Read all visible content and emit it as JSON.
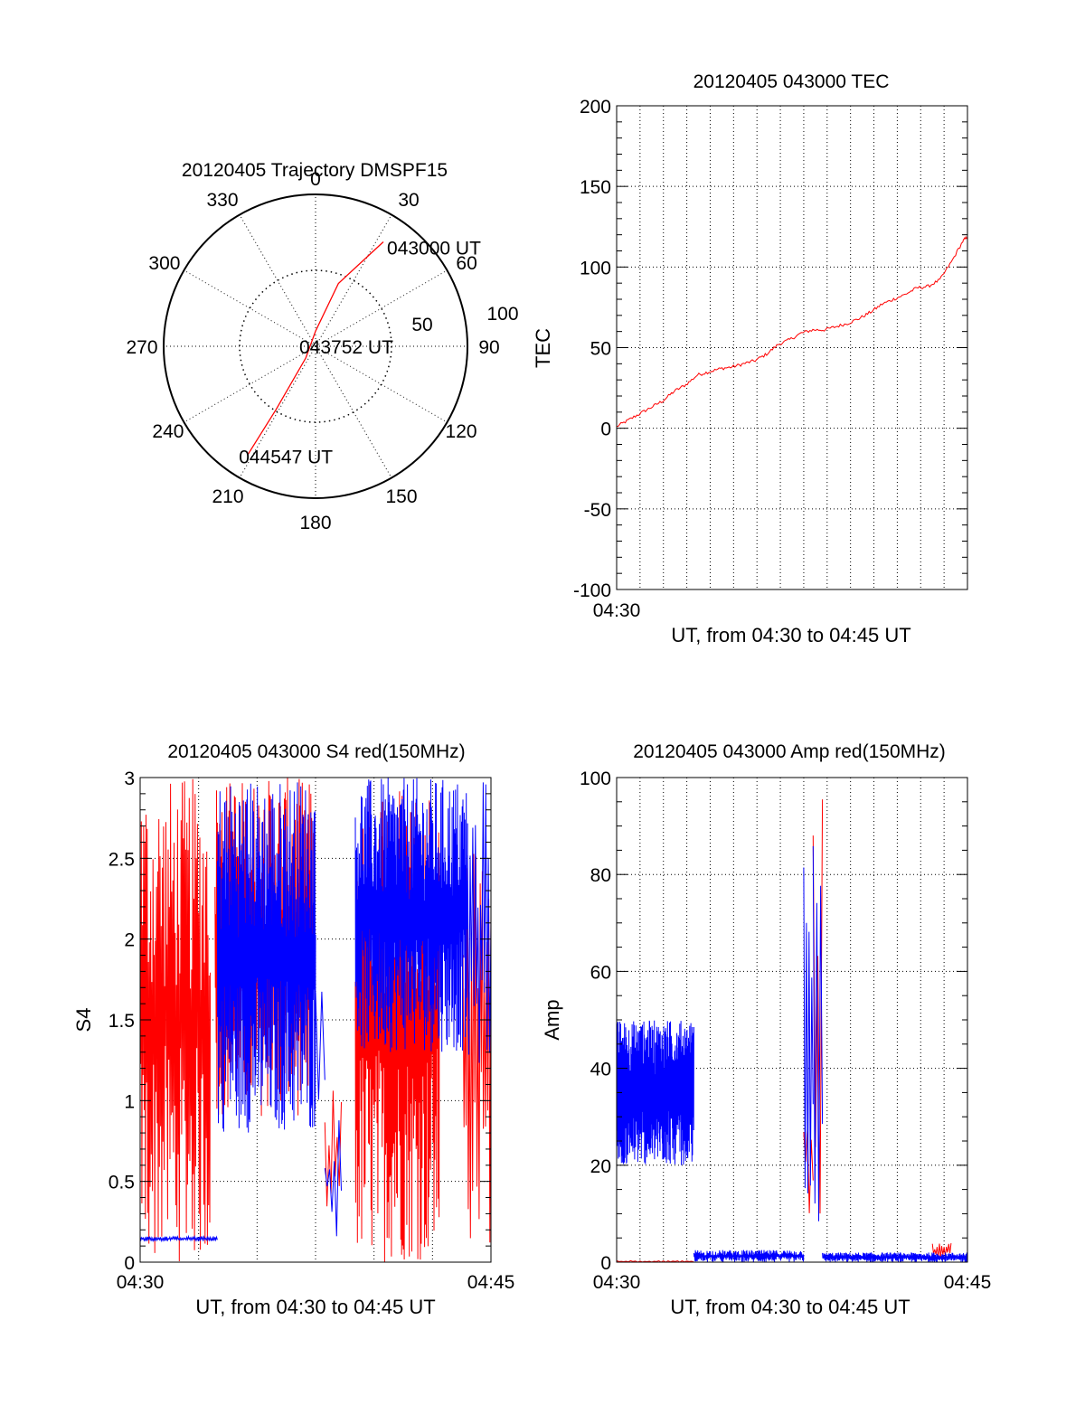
{
  "colors": {
    "red_series": "#ff0000",
    "blue_series": "#0000ff",
    "axes": "#000000"
  },
  "chart_data": [
    {
      "type": "polar",
      "title": "20120405 Trajectory DMSPF15",
      "angle_labels": [
        "0",
        "30",
        "60",
        "90",
        "120",
        "150",
        "180",
        "210",
        "240",
        "270",
        "300",
        "330"
      ],
      "radial_labels": [
        "50",
        "100"
      ],
      "center_label": "0",
      "rmax": 100,
      "grid": true,
      "series": [
        {
          "color": "#ff0000",
          "points": [
            {
              "az": 33,
              "r": 82
            },
            {
              "az": 20,
              "r": 44
            },
            {
              "az": 0,
              "r": 10
            },
            {
              "az": 220,
              "r": 10
            },
            {
              "az": 212,
              "r": 49
            },
            {
              "az": 212,
              "r": 84
            }
          ]
        }
      ],
      "annotations": [
        {
          "text": "043000 UT",
          "az": 33,
          "r": 82
        },
        {
          "text": "043752 UT",
          "az": 0,
          "r": 0
        },
        {
          "text": "044547 UT",
          "az": 212,
          "r": 84
        }
      ]
    },
    {
      "type": "line",
      "title": "20120405 043000 TEC",
      "xlabel": "UT, from 04:30 to 04:45 UT",
      "ylabel": "TEC",
      "x_tick_labels": [
        "04:30"
      ],
      "xlim": [
        0,
        15.2
      ],
      "ylim": [
        -100,
        200
      ],
      "y_ticks": [
        -100,
        -50,
        0,
        50,
        100,
        150,
        200
      ],
      "grid": true,
      "series": [
        {
          "color": "#ff0000",
          "x": [
            0,
            0.5,
            1,
            1.5,
            2,
            2.5,
            3,
            3.5,
            4,
            4.5,
            5,
            5.5,
            6,
            6.5,
            7,
            7.5,
            8,
            8.5,
            9,
            9.5,
            10,
            10.5,
            11,
            11.5,
            12,
            12.5,
            13,
            13.5,
            14,
            14.5,
            15,
            15.2
          ],
          "y": [
            1,
            5,
            9,
            13,
            17,
            23,
            27,
            33,
            35,
            37,
            38,
            40,
            42,
            46,
            52,
            55,
            59,
            61,
            61,
            63,
            65,
            68,
            72,
            77,
            80,
            83,
            87,
            88,
            92,
            103,
            116,
            119
          ]
        }
      ]
    },
    {
      "type": "line",
      "title": "20120405 043000 S4 red(150MHz)",
      "xlabel": "UT, from 04:30 to 04:45 UT",
      "ylabel": "S4",
      "x_tick_labels": [
        "04:30",
        "04:45"
      ],
      "xlim": [
        0,
        15
      ],
      "ylim": [
        0,
        3
      ],
      "y_ticks": [
        0,
        0.5,
        1,
        1.5,
        2,
        2.5,
        3
      ],
      "y_tick_labels": [
        "0",
        "0.5",
        "1",
        "1.5",
        "2",
        "2.5",
        "3"
      ],
      "grid": true,
      "series": [
        {
          "color": "#ff0000",
          "segments": [
            {
              "x0": 0.0,
              "x1": 3.0,
              "low": 0,
              "high": 3,
              "density": 40
            },
            {
              "x0": 3.2,
              "x1": 7.4,
              "low": 0.9,
              "high": 3,
              "density": 60
            },
            {
              "x0": 7.9,
              "x1": 8.6,
              "low": 0.13,
              "high": 1.1,
              "density": 12
            },
            {
              "x0": 9.2,
              "x1": 12.8,
              "low": 0,
              "high": 3,
              "density": 55
            },
            {
              "x0": 13.8,
              "x1": 15.0,
              "low": 0.1,
              "high": 2.6,
              "density": 22
            }
          ]
        },
        {
          "color": "#0000ff",
          "segments": [
            {
              "x0": 0.0,
              "x1": 3.3,
              "low": 0.13,
              "high": 0.16,
              "density": 30
            },
            {
              "x0": 3.3,
              "x1": 7.5,
              "low": 0.8,
              "high": 3,
              "density": 70
            },
            {
              "x0": 7.5,
              "x1": 7.9,
              "low": 1.0,
              "high": 1.8,
              "density": 8
            },
            {
              "x0": 7.9,
              "x1": 8.6,
              "low": 0.15,
              "high": 0.9,
              "density": 10
            },
            {
              "x0": 9.2,
              "x1": 14.0,
              "low": 1.3,
              "high": 3,
              "density": 70
            },
            {
              "x0": 14.0,
              "x1": 15.0,
              "low": 1.0,
              "high": 3,
              "density": 18
            }
          ]
        }
      ]
    },
    {
      "type": "line",
      "title": "20120405 043000 Amp red(150MHz)",
      "xlabel": "UT, from 04:30 to 04:45 UT",
      "ylabel": "Amp",
      "x_tick_labels": [
        "04:30",
        "04:45"
      ],
      "xlim": [
        0,
        15
      ],
      "ylim": [
        0,
        100
      ],
      "y_ticks": [
        0,
        20,
        40,
        60,
        80,
        100
      ],
      "grid": true,
      "series": [
        {
          "color": "#ff0000",
          "segments": [
            {
              "x0": 0.0,
              "x1": 3.3,
              "low": 0,
              "high": 0.3,
              "density": 10
            },
            {
              "x0": 8.0,
              "x1": 8.4,
              "low": 10,
              "high": 35,
              "density": 12
            },
            {
              "x0": 8.4,
              "x1": 8.8,
              "low": 10,
              "high": 99,
              "density": 10
            },
            {
              "x0": 13.5,
              "x1": 14.3,
              "low": 1,
              "high": 4,
              "density": 20
            }
          ]
        },
        {
          "color": "#0000ff",
          "segments": [
            {
              "x0": 0.0,
              "x1": 3.3,
              "low": 20,
              "high": 50,
              "density": 160
            },
            {
              "x0": 3.3,
              "x1": 8.0,
              "low": 0,
              "high": 2.5,
              "density": 60
            },
            {
              "x0": 8.0,
              "x1": 8.4,
              "low": 5,
              "high": 96,
              "density": 18
            },
            {
              "x0": 8.4,
              "x1": 8.8,
              "low": 5,
              "high": 88,
              "density": 12
            },
            {
              "x0": 8.8,
              "x1": 15.0,
              "low": 0,
              "high": 2,
              "density": 70
            }
          ]
        }
      ]
    }
  ]
}
